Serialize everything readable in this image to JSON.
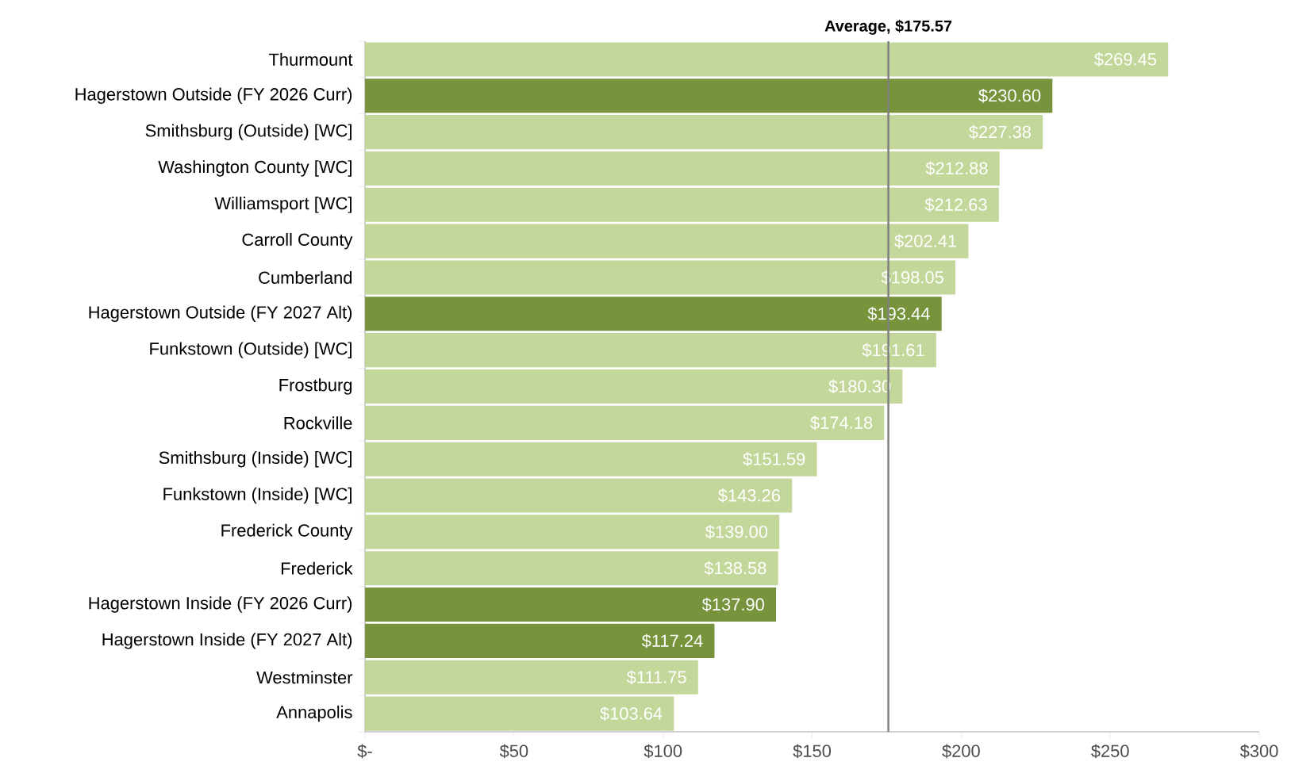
{
  "chart_data": {
    "type": "bar",
    "orientation": "horizontal",
    "categories": [
      "Thurmount",
      "Hagerstown Outside (FY 2026 Curr)",
      "Smithsburg (Outside) [WC]",
      "Washington County [WC]",
      "Williamsport [WC]",
      "Carroll County",
      "Cumberland",
      "Hagerstown Outside (FY 2027 Alt)",
      "Funkstown (Outside) [WC]",
      "Frostburg",
      "Rockville",
      "Smithsburg (Inside) [WC]",
      "Funkstown (Inside) [WC]",
      "Frederick County",
      "Frederick",
      "Hagerstown Inside (FY 2026 Curr)",
      "Hagerstown Inside (FY 2027 Alt)",
      "Westminster",
      "Annapolis"
    ],
    "values": [
      269.45,
      230.6,
      227.38,
      212.88,
      212.63,
      202.41,
      198.05,
      193.44,
      191.61,
      180.3,
      174.18,
      151.59,
      143.26,
      139.0,
      138.58,
      137.9,
      117.24,
      111.75,
      103.64
    ],
    "value_labels": [
      "$269.45",
      "$230.60",
      "$227.38",
      "$212.88",
      "$212.63",
      "$202.41",
      "$198.05",
      "$193.44",
      "$191.61",
      "$180.30",
      "$174.18",
      "$151.59",
      "$143.26",
      "$139.00",
      "$138.58",
      "$137.90",
      "$117.24",
      "$111.75",
      "$103.64"
    ],
    "colors": [
      "#c4d79b",
      "#77933c",
      "#c4d79b",
      "#c4d79b",
      "#c4d79b",
      "#c4d79b",
      "#c4d79b",
      "#77933c",
      "#c4d79b",
      "#c4d79b",
      "#c4d79b",
      "#c4d79b",
      "#c4d79b",
      "#c4d79b",
      "#c4d79b",
      "#77933c",
      "#77933c",
      "#c4d79b",
      "#c4d79b"
    ],
    "xlim": [
      0,
      300
    ],
    "xticks": [
      {
        "value": 0,
        "label": "$-"
      },
      {
        "value": 50,
        "label": "$50"
      },
      {
        "value": 100,
        "label": "$100"
      },
      {
        "value": 150,
        "label": "$150"
      },
      {
        "value": 200,
        "label": "$200"
      },
      {
        "value": 250,
        "label": "$250"
      },
      {
        "value": 300,
        "label": "$300"
      }
    ],
    "ref_lines": [
      {
        "axis": "x",
        "value": 175.57,
        "label": "Average,  $175.57",
        "color": "#808080"
      }
    ]
  }
}
